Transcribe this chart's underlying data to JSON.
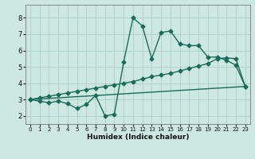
{
  "xlabel": "Humidex (Indice chaleur)",
  "xlim": [
    -0.5,
    23.5
  ],
  "ylim": [
    1.5,
    8.8
  ],
  "yticks": [
    2,
    3,
    4,
    5,
    6,
    7,
    8
  ],
  "xticks": [
    0,
    1,
    2,
    3,
    4,
    5,
    6,
    7,
    8,
    9,
    10,
    11,
    12,
    13,
    14,
    15,
    16,
    17,
    18,
    19,
    20,
    21,
    22,
    23
  ],
  "background_color": "#cce8e0",
  "grid_color": "#aacfc8",
  "line_color": "#1a6b5a",
  "curve1_x": [
    0,
    1,
    2,
    3,
    4,
    5,
    6,
    7,
    8,
    9,
    10,
    11,
    12,
    13,
    14,
    15,
    16,
    17,
    18,
    19,
    20,
    21,
    22,
    23
  ],
  "curve1_y": [
    3.0,
    2.9,
    2.8,
    2.9,
    2.75,
    2.45,
    2.7,
    3.25,
    2.0,
    2.1,
    5.3,
    8.0,
    7.5,
    5.5,
    7.1,
    7.2,
    6.4,
    6.3,
    6.3,
    5.6,
    5.6,
    5.4,
    5.1,
    3.8
  ],
  "curve2_x": [
    0,
    1,
    2,
    3,
    4,
    5,
    6,
    7,
    8,
    9,
    10,
    11,
    12,
    13,
    14,
    15,
    16,
    17,
    18,
    19,
    20,
    21,
    22,
    23
  ],
  "curve2_y": [
    3.0,
    3.1,
    3.2,
    3.3,
    3.4,
    3.5,
    3.6,
    3.7,
    3.8,
    3.9,
    4.0,
    4.1,
    4.25,
    4.4,
    4.5,
    4.6,
    4.75,
    4.9,
    5.05,
    5.2,
    5.5,
    5.55,
    5.5,
    3.8
  ],
  "curve3_x": [
    0,
    23
  ],
  "curve3_y": [
    3.0,
    3.8
  ],
  "marker_size": 2.5,
  "line_width": 1.0
}
